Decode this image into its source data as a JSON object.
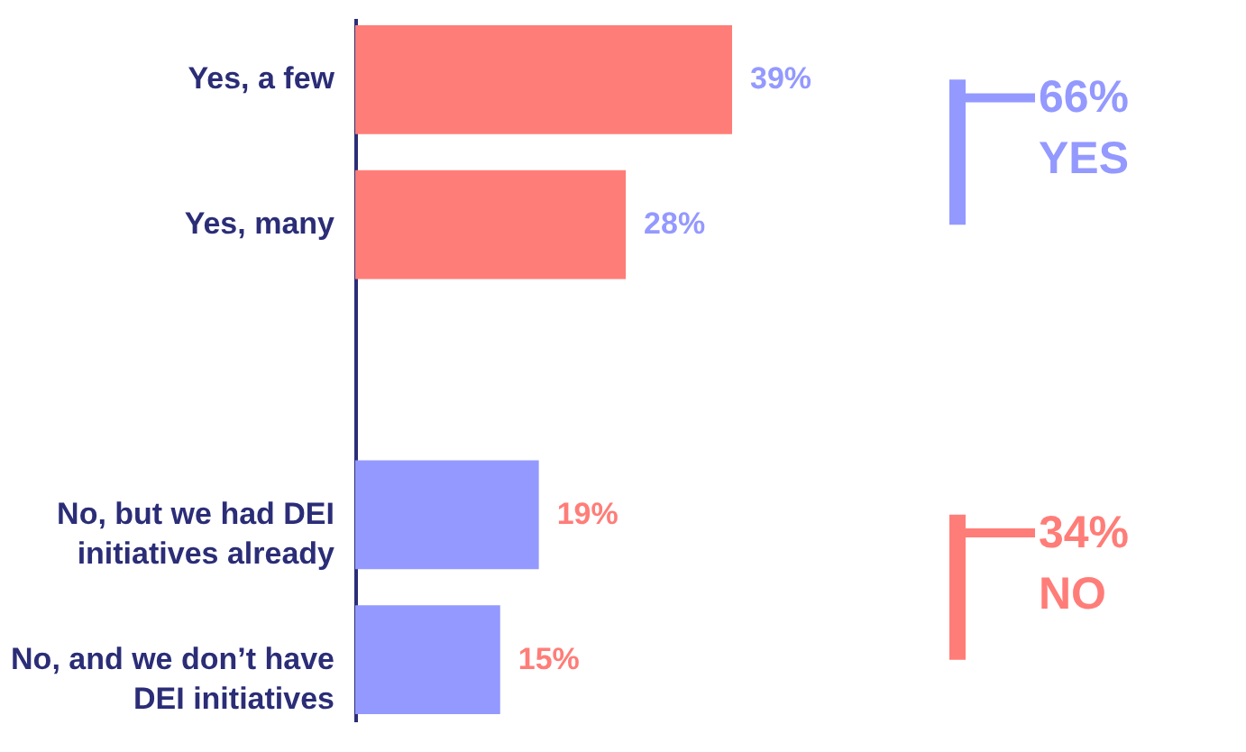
{
  "chart_data": {
    "type": "bar",
    "orientation": "horizontal",
    "categories": [
      "Yes, a few",
      "Yes, many",
      null,
      "No, but we had DEI initiatives already",
      "No, and we don’t have DEI initiatives"
    ],
    "values": [
      39,
      28,
      null,
      19,
      15
    ],
    "colors": [
      "#ff7d78",
      "#ff7d78",
      null,
      "#9499ff",
      "#9499ff"
    ],
    "value_labels": [
      "39%",
      "28%",
      null,
      "19%",
      "15%"
    ],
    "annotations": [
      "66% YES",
      "34% NO"
    ]
  }
}
